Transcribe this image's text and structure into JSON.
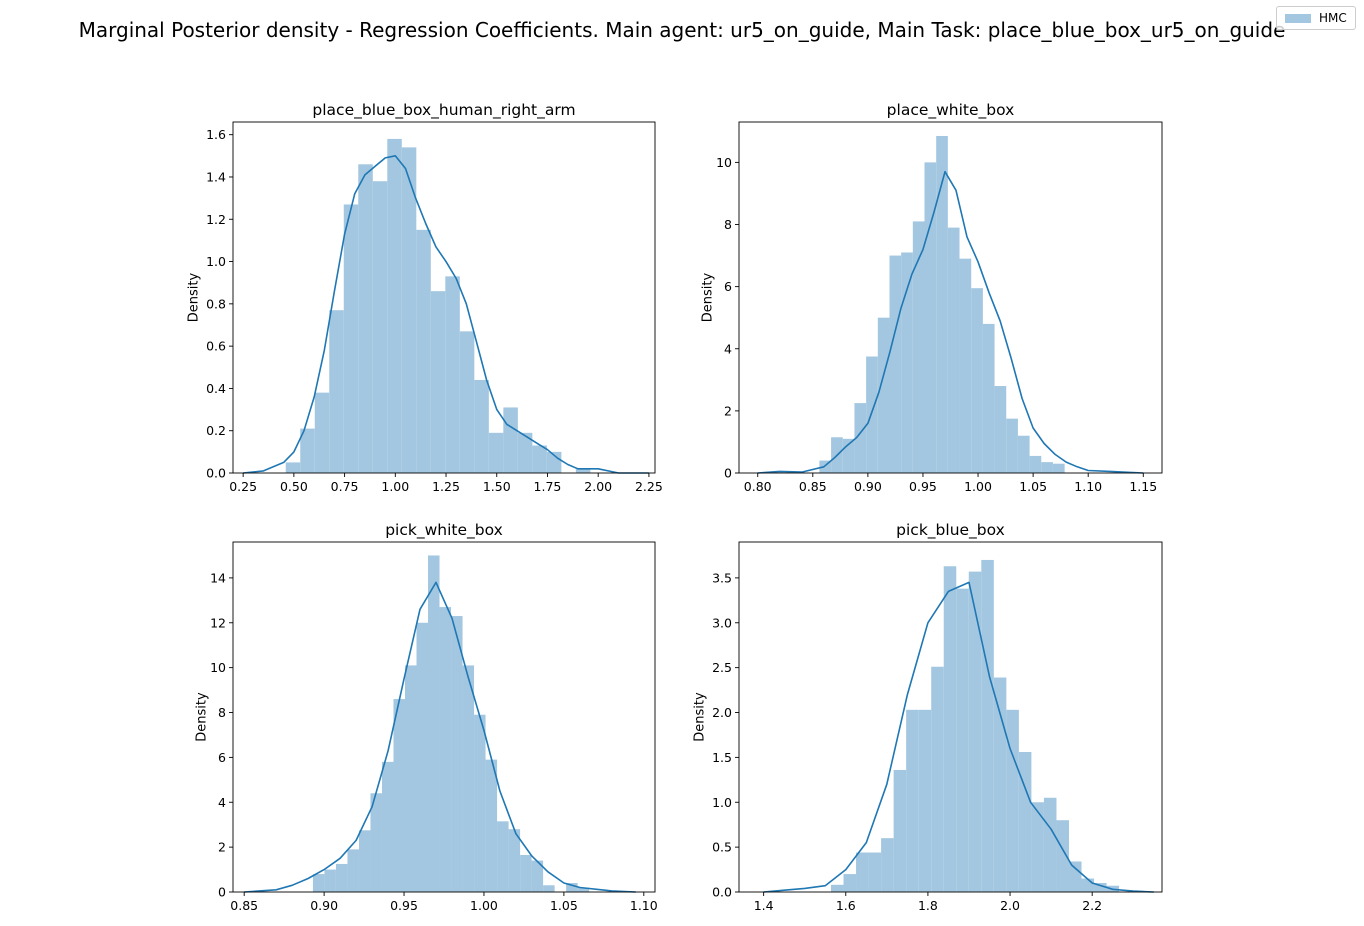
{
  "figure": {
    "suptitle": "Marginal Posterior density - Regression Coefficients. Main agent: ur5_on_guide, Main Task: place_blue_box_ur5_on_guide",
    "legend_label": "HMC",
    "hist_color": "#a3c7e0",
    "kde_color": "#1f77b4"
  },
  "chart_data": [
    {
      "type": "bar",
      "title": "place_blue_box_human_right_arm",
      "xlabel": "",
      "ylabel": "Density",
      "xlim": [
        0.2,
        2.28
      ],
      "ylim": [
        0,
        1.66
      ],
      "xticks": [
        "0.25",
        "0.50",
        "0.75",
        "1.00",
        "1.25",
        "1.50",
        "1.75",
        "2.00",
        "2.25"
      ],
      "yticks": [
        "0.0",
        "0.2",
        "0.4",
        "0.6",
        "0.8",
        "1.0",
        "1.2",
        "1.4",
        "1.6"
      ],
      "bins": {
        "start": 0.46,
        "width": 0.0715,
        "values": [
          0.05,
          0.21,
          0.38,
          0.77,
          1.27,
          1.46,
          1.38,
          1.58,
          1.54,
          1.15,
          0.86,
          0.93,
          0.67,
          0.44,
          0.19,
          0.31,
          0.19,
          0.13,
          0.1,
          0.0,
          0.02
        ]
      },
      "kde": {
        "x": [
          0.25,
          0.35,
          0.45,
          0.5,
          0.55,
          0.6,
          0.65,
          0.7,
          0.75,
          0.8,
          0.85,
          0.9,
          0.95,
          1.0,
          1.05,
          1.1,
          1.15,
          1.2,
          1.25,
          1.3,
          1.35,
          1.4,
          1.45,
          1.5,
          1.55,
          1.6,
          1.65,
          1.7,
          1.75,
          1.8,
          1.85,
          1.9,
          2.0,
          2.1,
          2.25
        ],
        "y": [
          0.0,
          0.01,
          0.05,
          0.1,
          0.2,
          0.36,
          0.58,
          0.86,
          1.13,
          1.32,
          1.41,
          1.45,
          1.49,
          1.5,
          1.44,
          1.3,
          1.18,
          1.07,
          1.0,
          0.92,
          0.8,
          0.62,
          0.44,
          0.3,
          0.23,
          0.2,
          0.17,
          0.14,
          0.11,
          0.07,
          0.04,
          0.02,
          0.02,
          0.0,
          0.0
        ]
      }
    },
    {
      "type": "bar",
      "title": "place_white_box",
      "xlabel": "",
      "ylabel": "Density",
      "xlim": [
        0.783,
        1.167
      ],
      "ylim": [
        0,
        11.3
      ],
      "xticks": [
        "0.80",
        "0.85",
        "0.90",
        "0.95",
        "1.00",
        "1.05",
        "1.10",
        "1.15"
      ],
      "yticks": [
        "0",
        "2",
        "4",
        "6",
        "8",
        "10"
      ],
      "bins": {
        "start": 0.856,
        "width": 0.0106,
        "values": [
          0.4,
          1.15,
          1.1,
          2.25,
          3.75,
          5.0,
          7.0,
          7.1,
          8.1,
          10.0,
          10.85,
          7.9,
          6.9,
          5.95,
          4.8,
          2.8,
          1.75,
          1.2,
          0.55,
          0.35,
          0.3
        ]
      },
      "kde": {
        "x": [
          0.8,
          0.82,
          0.84,
          0.86,
          0.87,
          0.88,
          0.89,
          0.9,
          0.91,
          0.92,
          0.93,
          0.94,
          0.95,
          0.96,
          0.97,
          0.98,
          0.99,
          1.0,
          1.01,
          1.02,
          1.03,
          1.04,
          1.05,
          1.06,
          1.07,
          1.08,
          1.09,
          1.1,
          1.12,
          1.15
        ],
        "y": [
          0.0,
          0.05,
          0.03,
          0.2,
          0.5,
          0.85,
          1.15,
          1.6,
          2.6,
          3.9,
          5.3,
          6.4,
          7.2,
          8.4,
          9.7,
          9.1,
          7.6,
          6.8,
          5.8,
          4.9,
          3.7,
          2.4,
          1.45,
          0.95,
          0.6,
          0.35,
          0.2,
          0.08,
          0.05,
          0.0
        ]
      }
    },
    {
      "type": "bar",
      "title": "pick_white_box",
      "xlabel": "",
      "ylabel": "Density",
      "xlim": [
        0.843,
        1.107
      ],
      "ylim": [
        0,
        15.6
      ],
      "xticks": [
        "0.85",
        "0.90",
        "0.95",
        "1.00",
        "1.05",
        "1.10"
      ],
      "yticks": [
        "0",
        "2",
        "4",
        "6",
        "8",
        "10",
        "12",
        "14"
      ],
      "bins": {
        "start": 0.893,
        "width": 0.0072,
        "values": [
          0.8,
          1.0,
          1.25,
          1.9,
          2.75,
          4.4,
          5.8,
          8.6,
          10.1,
          12.0,
          15.0,
          12.7,
          12.3,
          10.1,
          7.9,
          5.9,
          3.15,
          2.8,
          1.65,
          1.4,
          0.3,
          0.0,
          0.4,
          0.2
        ]
      },
      "kde": {
        "x": [
          0.85,
          0.87,
          0.88,
          0.89,
          0.9,
          0.91,
          0.92,
          0.93,
          0.94,
          0.95,
          0.96,
          0.97,
          0.98,
          0.99,
          1.0,
          1.01,
          1.02,
          1.03,
          1.04,
          1.05,
          1.06,
          1.08,
          1.095
        ],
        "y": [
          0.0,
          0.1,
          0.3,
          0.6,
          1.0,
          1.5,
          2.3,
          3.8,
          6.3,
          9.5,
          12.6,
          13.8,
          12.2,
          9.6,
          7.2,
          4.5,
          2.6,
          1.6,
          0.9,
          0.4,
          0.2,
          0.05,
          0.0
        ]
      }
    },
    {
      "type": "bar",
      "title": "pick_blue_box",
      "xlabel": "",
      "ylabel": "Density",
      "xlim": [
        1.34,
        2.37
      ],
      "ylim": [
        0,
        3.9
      ],
      "xticks": [
        "1.4",
        "1.6",
        "1.8",
        "2.0",
        "2.2"
      ],
      "yticks": [
        "0.0",
        "0.5",
        "1.0",
        "1.5",
        "2.0",
        "2.5",
        "3.0",
        "3.5"
      ],
      "bins": {
        "start": 1.564,
        "width": 0.0305,
        "values": [
          0.08,
          0.2,
          0.44,
          0.44,
          0.6,
          1.36,
          2.03,
          2.03,
          2.51,
          3.63,
          3.38,
          3.57,
          3.7,
          2.39,
          2.03,
          1.56,
          1.0,
          1.05,
          0.8,
          0.34,
          0.15,
          0.1,
          0.07
        ]
      },
      "kde": {
        "x": [
          1.4,
          1.45,
          1.5,
          1.55,
          1.6,
          1.65,
          1.7,
          1.75,
          1.8,
          1.85,
          1.9,
          1.95,
          2.0,
          2.05,
          2.1,
          2.15,
          2.2,
          2.25,
          2.3,
          2.35
        ],
        "y": [
          0.0,
          0.02,
          0.04,
          0.07,
          0.25,
          0.55,
          1.2,
          2.2,
          3.0,
          3.35,
          3.45,
          2.4,
          1.6,
          1.0,
          0.7,
          0.3,
          0.1,
          0.03,
          0.01,
          0.0
        ]
      }
    }
  ]
}
